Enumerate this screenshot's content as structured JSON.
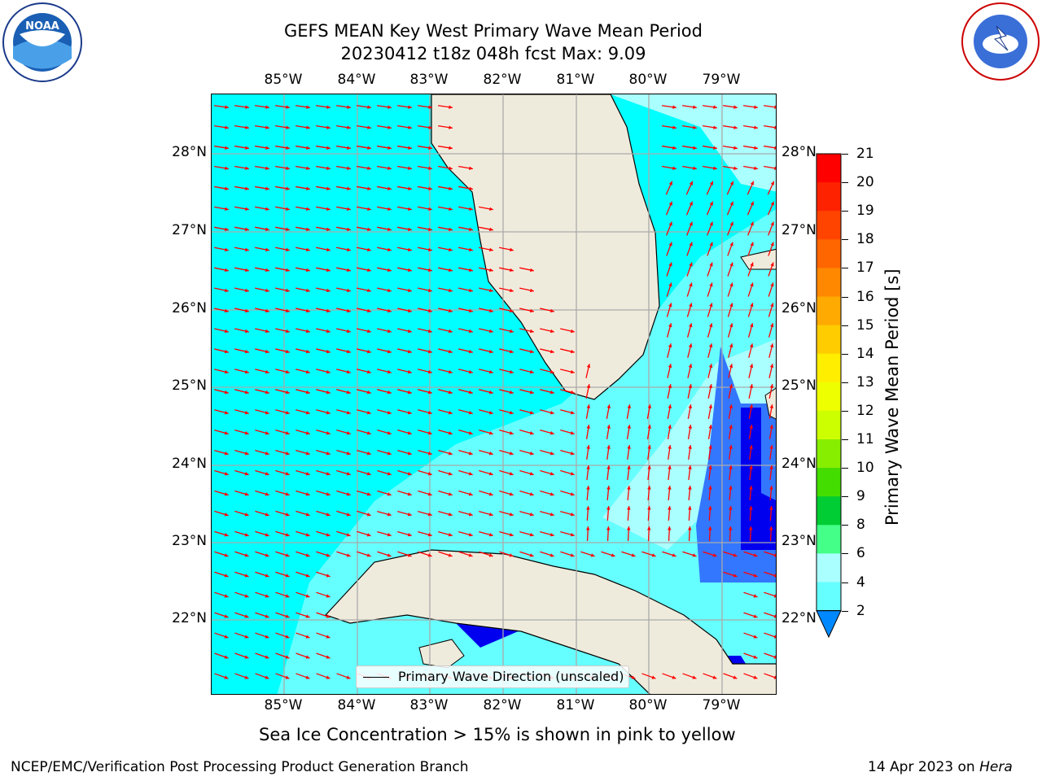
{
  "title": {
    "line1": "GEFS MEAN Key West Primary Wave Mean Period",
    "line2": "20230412 t18z 048h fcst   Max: 9.09"
  },
  "axes": {
    "lon_labels": [
      "85°W",
      "84°W",
      "83°W",
      "82°W",
      "81°W",
      "80°W",
      "79°W"
    ],
    "lat_labels": [
      "28°N",
      "27°N",
      "26°N",
      "25°N",
      "24°N",
      "23°N",
      "22°N"
    ]
  },
  "legend": {
    "label": "Primary Wave Direction (unscaled)"
  },
  "colorbar": {
    "label": "Primary Wave Mean Period [s]",
    "ticks": [
      "21",
      "20",
      "19",
      "18",
      "17",
      "16",
      "15",
      "14",
      "13",
      "12",
      "11",
      "10",
      "9",
      "8",
      "6",
      "4",
      "2"
    ],
    "colors": [
      "#ff0000",
      "#ff2200",
      "#ff4400",
      "#ff6600",
      "#ff8800",
      "#ffaa00",
      "#ffcc00",
      "#ffee00",
      "#eeff00",
      "#ccff00",
      "#88ee00",
      "#44dd00",
      "#00cc33",
      "#44ff88",
      "#aaffff",
      "#66ffff",
      "#00ffff",
      "#0088ff"
    ]
  },
  "map": {
    "region": "Florida Straits / Key West",
    "colors": {
      "deep": "#0000ee",
      "mid": "#3377ff",
      "ocean": "#00ffff",
      "light": "#66ffff",
      "lighter": "#aaffff",
      "land": "#efebdc",
      "arrow": "#ff0000"
    },
    "values_range": "Max: 9.09"
  },
  "footer": {
    "note": "Sea Ice Concentration > 15% is shown in pink to yellow",
    "left": "NCEP/EMC/Verification Post Processing Product Generation Branch",
    "right_prefix": "14 Apr 2023 on ",
    "right_host": "Hera"
  },
  "logos": {
    "left": "NOAA",
    "right": "NATIONAL WEATHER SERVICE"
  }
}
